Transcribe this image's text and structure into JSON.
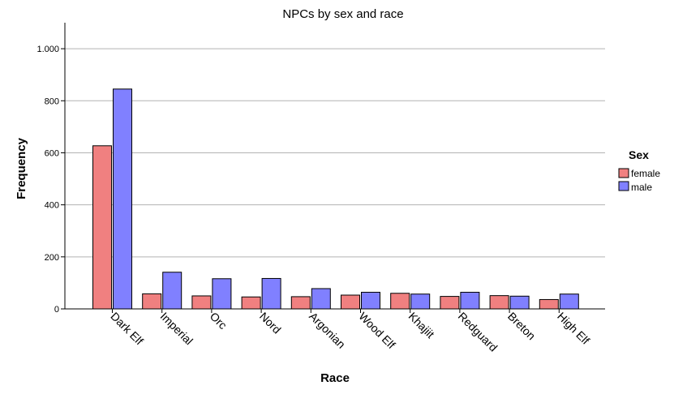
{
  "chart_data": {
    "type": "bar",
    "title": "NPCs by sex and race",
    "xlabel": "Race",
    "ylabel": "Frequency",
    "ylim": [
      0,
      1100
    ],
    "yticks": [
      0,
      200,
      400,
      600,
      800,
      1000
    ],
    "ytick_labels": [
      "0",
      "200",
      "400",
      "600",
      "800",
      "1.000"
    ],
    "grid": true,
    "categories": [
      "Dark Elf",
      "Imperial",
      "Orc",
      "Nord",
      "Argonian",
      "Wood Elf",
      "Khajiit",
      "Redguard",
      "Breton",
      "High Elf"
    ],
    "series": [
      {
        "name": "female",
        "color": "#f08080",
        "values": [
          627,
          58,
          50,
          46,
          47,
          53,
          60,
          48,
          51,
          36
        ]
      },
      {
        "name": "male",
        "color": "#8080ff",
        "values": [
          845,
          141,
          116,
          117,
          78,
          64,
          57,
          64,
          49,
          57
        ]
      }
    ],
    "legend": {
      "title": "Sex",
      "position": "right"
    }
  }
}
